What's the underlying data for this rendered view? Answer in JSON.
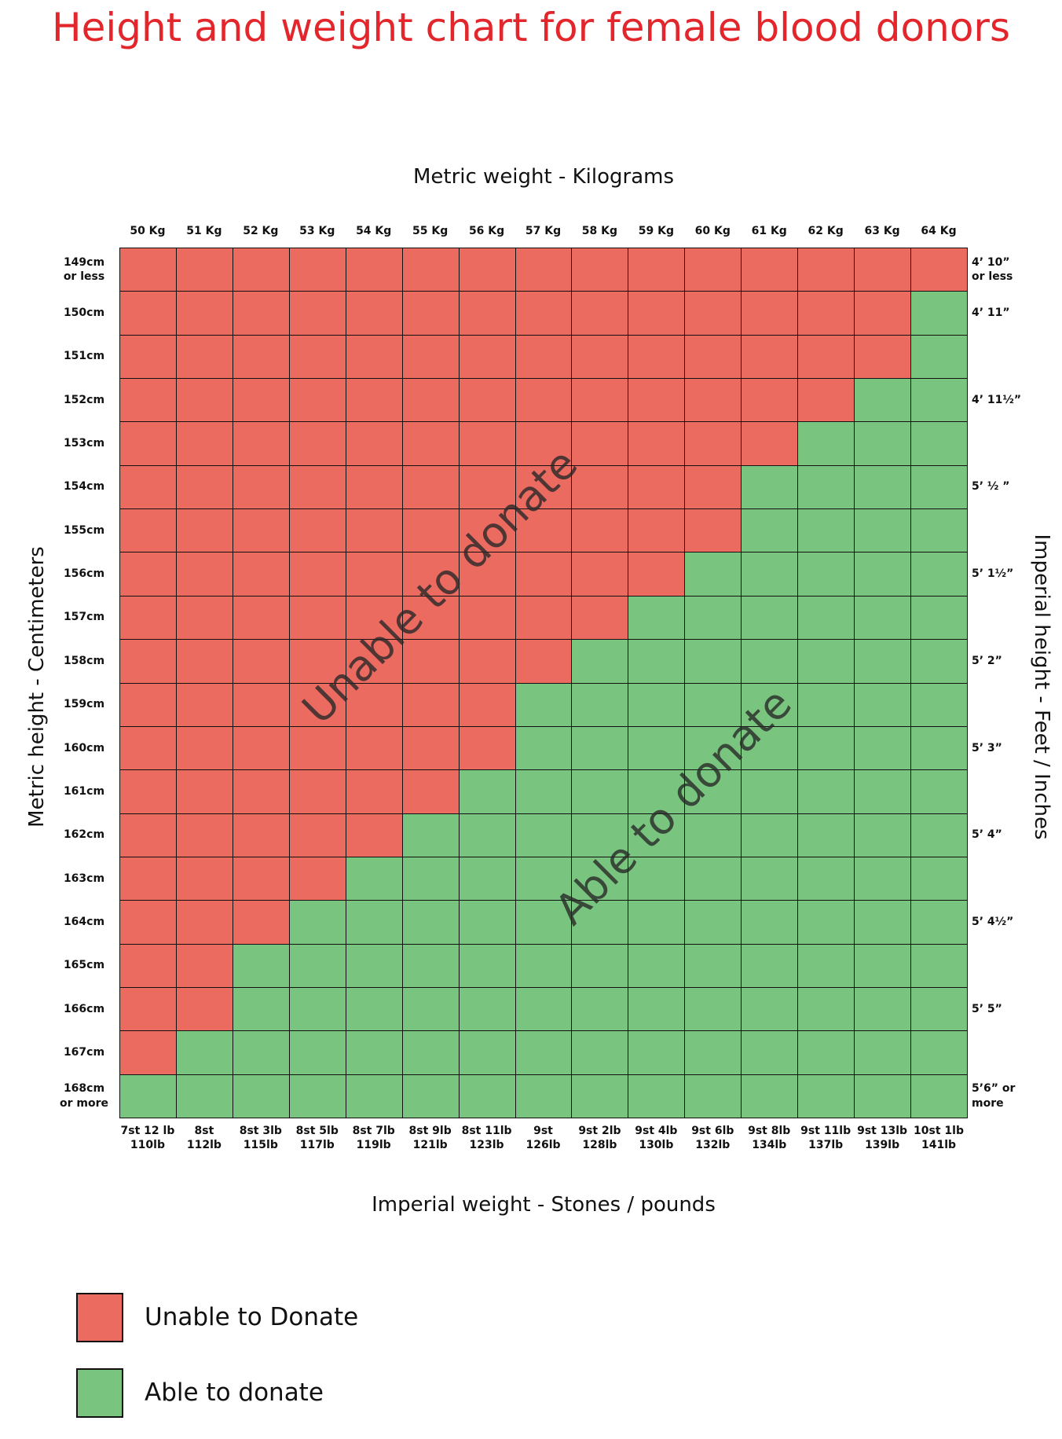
{
  "chart_data": {
    "type": "heatmap",
    "title": "Height and weight chart for female blood donors",
    "top_axis_label": "Metric weight - Kilograms",
    "bottom_axis_label": "Imperial weight - Stones / pounds",
    "left_axis_label": "Metric height - Centimeters",
    "right_axis_label": "Imperial height - Feet / Inches",
    "x_categories": [
      "50 Kg",
      "51 Kg",
      "52 Kg",
      "53 Kg",
      "54 Kg",
      "55 Kg",
      "56 Kg",
      "57 Kg",
      "58 Kg",
      "59 Kg",
      "60 Kg",
      "61 Kg",
      "62 Kg",
      "63 Kg",
      "64 Kg"
    ],
    "x2_categories": [
      "7st 12 lb\n110lb",
      "8st\n112lb",
      "8st 3lb\n115lb",
      "8st 5lb\n117lb",
      "8st 7lb\n119lb",
      "8st 9lb\n121lb",
      "8st 11lb\n123lb",
      "9st\n126lb",
      "9st 2lb\n128lb",
      "9st 4lb\n130lb",
      "9st 6lb\n132lb",
      "9st 8lb\n134lb",
      "9st 11lb\n137lb",
      "9st 13lb\n139lb",
      "10st 1lb\n141lb"
    ],
    "y_categories": [
      "149cm\nor less",
      "150cm",
      "151cm",
      "152cm",
      "153cm",
      "154cm",
      "155cm",
      "156cm",
      "157cm",
      "158cm",
      "159cm",
      "160cm",
      "161cm",
      "162cm",
      "163cm",
      "164cm",
      "165cm",
      "166cm",
      "167cm",
      "168cm\nor more"
    ],
    "y2_categories": [
      "4’ 10”\nor less",
      "4’ 11”",
      null,
      "4’ 11½”",
      null,
      "5’ ½ ”",
      null,
      "5’ 1½”",
      null,
      "5’ 2”",
      null,
      "5’ 3”",
      null,
      "5’ 4”",
      null,
      "5’ 4½”",
      null,
      "5’ 5”",
      null,
      "5’6” or\nmore"
    ],
    "values": [
      [
        0,
        0,
        0,
        0,
        0,
        0,
        0,
        0,
        0,
        0,
        0,
        0,
        0,
        0,
        0
      ],
      [
        0,
        0,
        0,
        0,
        0,
        0,
        0,
        0,
        0,
        0,
        0,
        0,
        0,
        0,
        1
      ],
      [
        0,
        0,
        0,
        0,
        0,
        0,
        0,
        0,
        0,
        0,
        0,
        0,
        0,
        0,
        1
      ],
      [
        0,
        0,
        0,
        0,
        0,
        0,
        0,
        0,
        0,
        0,
        0,
        0,
        0,
        1,
        1
      ],
      [
        0,
        0,
        0,
        0,
        0,
        0,
        0,
        0,
        0,
        0,
        0,
        0,
        1,
        1,
        1
      ],
      [
        0,
        0,
        0,
        0,
        0,
        0,
        0,
        0,
        0,
        0,
        0,
        1,
        1,
        1,
        1
      ],
      [
        0,
        0,
        0,
        0,
        0,
        0,
        0,
        0,
        0,
        0,
        0,
        1,
        1,
        1,
        1
      ],
      [
        0,
        0,
        0,
        0,
        0,
        0,
        0,
        0,
        0,
        0,
        1,
        1,
        1,
        1,
        1
      ],
      [
        0,
        0,
        0,
        0,
        0,
        0,
        0,
        0,
        0,
        1,
        1,
        1,
        1,
        1,
        1
      ],
      [
        0,
        0,
        0,
        0,
        0,
        0,
        0,
        0,
        1,
        1,
        1,
        1,
        1,
        1,
        1
      ],
      [
        0,
        0,
        0,
        0,
        0,
        0,
        0,
        1,
        1,
        1,
        1,
        1,
        1,
        1,
        1
      ],
      [
        0,
        0,
        0,
        0,
        0,
        0,
        0,
        1,
        1,
        1,
        1,
        1,
        1,
        1,
        1
      ],
      [
        0,
        0,
        0,
        0,
        0,
        0,
        1,
        1,
        1,
        1,
        1,
        1,
        1,
        1,
        1
      ],
      [
        0,
        0,
        0,
        0,
        0,
        1,
        1,
        1,
        1,
        1,
        1,
        1,
        1,
        1,
        1
      ],
      [
        0,
        0,
        0,
        0,
        1,
        1,
        1,
        1,
        1,
        1,
        1,
        1,
        1,
        1,
        1
      ],
      [
        0,
        0,
        0,
        1,
        1,
        1,
        1,
        1,
        1,
        1,
        1,
        1,
        1,
        1,
        1
      ],
      [
        0,
        0,
        1,
        1,
        1,
        1,
        1,
        1,
        1,
        1,
        1,
        1,
        1,
        1,
        1
      ],
      [
        0,
        0,
        1,
        1,
        1,
        1,
        1,
        1,
        1,
        1,
        1,
        1,
        1,
        1,
        1
      ],
      [
        0,
        1,
        1,
        1,
        1,
        1,
        1,
        1,
        1,
        1,
        1,
        1,
        1,
        1,
        1
      ],
      [
        1,
        1,
        1,
        1,
        1,
        1,
        1,
        1,
        1,
        1,
        1,
        1,
        1,
        1,
        1
      ]
    ],
    "legend": [
      {
        "name": "Unable to Donate",
        "color": "#ec6b60"
      },
      {
        "name": "Able to donate",
        "color": "#79c57f"
      }
    ],
    "annotations": [
      "Unable to donate",
      "Able to donate"
    ]
  }
}
